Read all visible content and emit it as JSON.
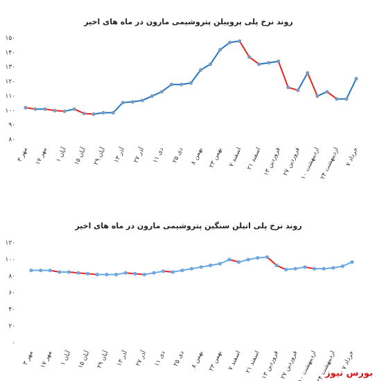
{
  "brand": "بورس نیوز",
  "chart_data": [
    {
      "type": "line",
      "title": "روند نرخ پلی پروپیلن پتروشیمی مارون در ماه های اخیر",
      "categories": [
        "۳ مهر",
        null,
        "۱۷ مهر",
        null,
        "۱ آبان",
        null,
        "۱۵ آبان",
        null,
        "۲۹ آبان",
        null,
        "۱۳ آذر",
        null,
        "۲۷ آذر",
        null,
        "۱۱ دی",
        null,
        "۲۵ دی",
        null,
        "۸ بهمن",
        null,
        "۲۳ بهمن",
        null,
        "۷ اسفند",
        null,
        "۲۱ اسفند",
        null,
        "۱۳ فروردین",
        null,
        "۲۷ فروردین",
        null,
        "۱۰ اردیبهشت",
        null,
        "۲۴ اردیبهشت",
        null,
        "۷ خرداد"
      ],
      "values": [
        102,
        101,
        101,
        100,
        99.5,
        101,
        98,
        97.5,
        98.5,
        98.5,
        105.5,
        106,
        107,
        110,
        113,
        118,
        118,
        119,
        128,
        132,
        142,
        147,
        148,
        137,
        132,
        133,
        134,
        116,
        114,
        126,
        110,
        113,
        108,
        108,
        122
      ],
      "rise_color": "#1f77c4",
      "fall_color": "#e8231e",
      "marker_color": "#7f99b8",
      "ylim": [
        80,
        150
      ],
      "yticks": [
        {
          "value": 80,
          "label": "۸۰"
        },
        {
          "value": 90,
          "label": "۹۰"
        },
        {
          "value": 100,
          "label": "۱۰۰"
        },
        {
          "value": 110,
          "label": "۱۱۰"
        },
        {
          "value": 120,
          "label": "۱۲۰"
        },
        {
          "value": 130,
          "label": "۱۳۰"
        },
        {
          "value": 140,
          "label": "۱۴۰"
        },
        {
          "value": 150,
          "label": "۱۵۰"
        }
      ]
    },
    {
      "type": "line",
      "title": "روند نرخ پلی اتیلن سنگین پتروشیمی مارون در ماه های اخیر",
      "categories": [
        "۳ مهر",
        null,
        "۱۷ مهر",
        null,
        "۱ آبان",
        null,
        "۱۵ آبان",
        null,
        "۲۹ آبان",
        null,
        "۱۳ آذر",
        null,
        "۲۷ آذر",
        null,
        "۱۱ دی",
        null,
        "۲۵ دی",
        null,
        "۸ بهمن",
        null,
        "۲۳ بهمن",
        null,
        "۷ اسفند",
        null,
        "۲۱ اسفند",
        null,
        "۱۳ فروردین",
        null,
        "۲۷ فروردین",
        null,
        "۱۰ اردیبهشت",
        null,
        "۲۴ اردیبهشت",
        null,
        "۷ خرداد"
      ],
      "values": [
        87,
        87,
        87,
        85,
        85,
        84,
        83,
        82,
        82,
        82,
        84,
        83,
        82,
        84,
        86,
        85,
        87,
        89,
        91,
        93,
        95,
        100,
        97,
        100,
        102,
        103,
        93,
        88,
        89,
        91,
        89,
        89,
        90,
        92,
        97
      ],
      "rise_color": "#6aa7e0",
      "fall_color": "#e8231e",
      "marker_color": "#6aa7e0",
      "ylim": [
        0,
        120
      ],
      "yticks": [
        {
          "value": 0,
          "label": "۰"
        },
        {
          "value": 20,
          "label": "۲۰"
        },
        {
          "value": 40,
          "label": "۴۰"
        },
        {
          "value": 60,
          "label": "۶۰"
        },
        {
          "value": 80,
          "label": "۸۰"
        },
        {
          "value": 100,
          "label": "۱۰۰"
        },
        {
          "value": 120,
          "label": "۱۲۰"
        }
      ]
    }
  ]
}
